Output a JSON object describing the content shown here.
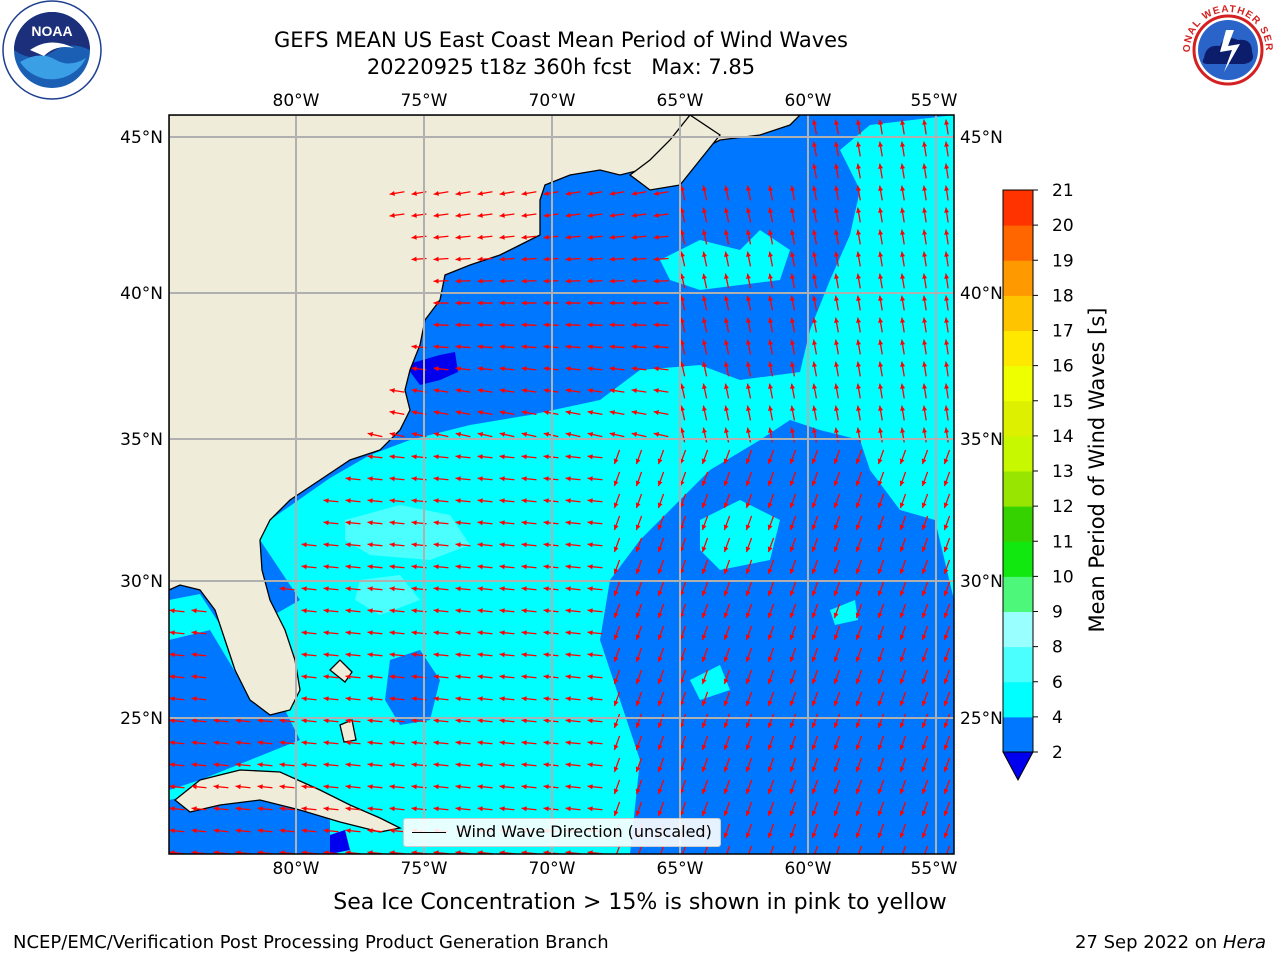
{
  "title": {
    "line1": "GEFS MEAN US East Coast Mean Period of Wind Waves",
    "line2": "20220925 t18z 360h fcst   Max: 7.85"
  },
  "map": {
    "lon_labels": [
      "80°W",
      "75°W",
      "70°W",
      "65°W",
      "60°W",
      "55°W"
    ],
    "lat_labels": [
      "45°N",
      "40°N",
      "35°N",
      "30°N",
      "25°N"
    ],
    "lon_range": [
      -85,
      -54.5
    ],
    "lat_range": [
      20.5,
      46
    ],
    "land_color": "#efedda",
    "grid_color": "#b0b0b0",
    "arrow_color": "#ff0000"
  },
  "legend": {
    "label": "Wind Wave Direction (unscaled)"
  },
  "colorbar": {
    "label": "Mean Period of Wind Waves [s]",
    "ticks": [
      "2",
      "4",
      "6",
      "8",
      "9",
      "10",
      "11",
      "12",
      "13",
      "14",
      "15",
      "16",
      "17",
      "18",
      "19",
      "20",
      "21"
    ],
    "colors": [
      "#0077ff",
      "#00ffff",
      "#4cffff",
      "#99ffff",
      "#4df77a",
      "#10e810",
      "#36d200",
      "#97e500",
      "#c8f800",
      "#dcf000",
      "#eeff00",
      "#ffe800",
      "#ffc400",
      "#ff9900",
      "#ff6600",
      "#ff3300"
    ],
    "extend_color": "#0000ee"
  },
  "footer": {
    "ice_note": "Sea Ice Concentration > 15% is shown in pink to yellow",
    "credit": "NCEP/EMC/Verification Post Processing Product Generation Branch",
    "date": "27 Sep 2022 on ",
    "machine": "Hera"
  },
  "logos": {
    "left": "NOAA",
    "right_text": "NATIONAL WEATHER SERVICE"
  },
  "icons": {
    "left_logo": "noaa-logo-icon",
    "right_logo": "nws-logo-icon"
  }
}
